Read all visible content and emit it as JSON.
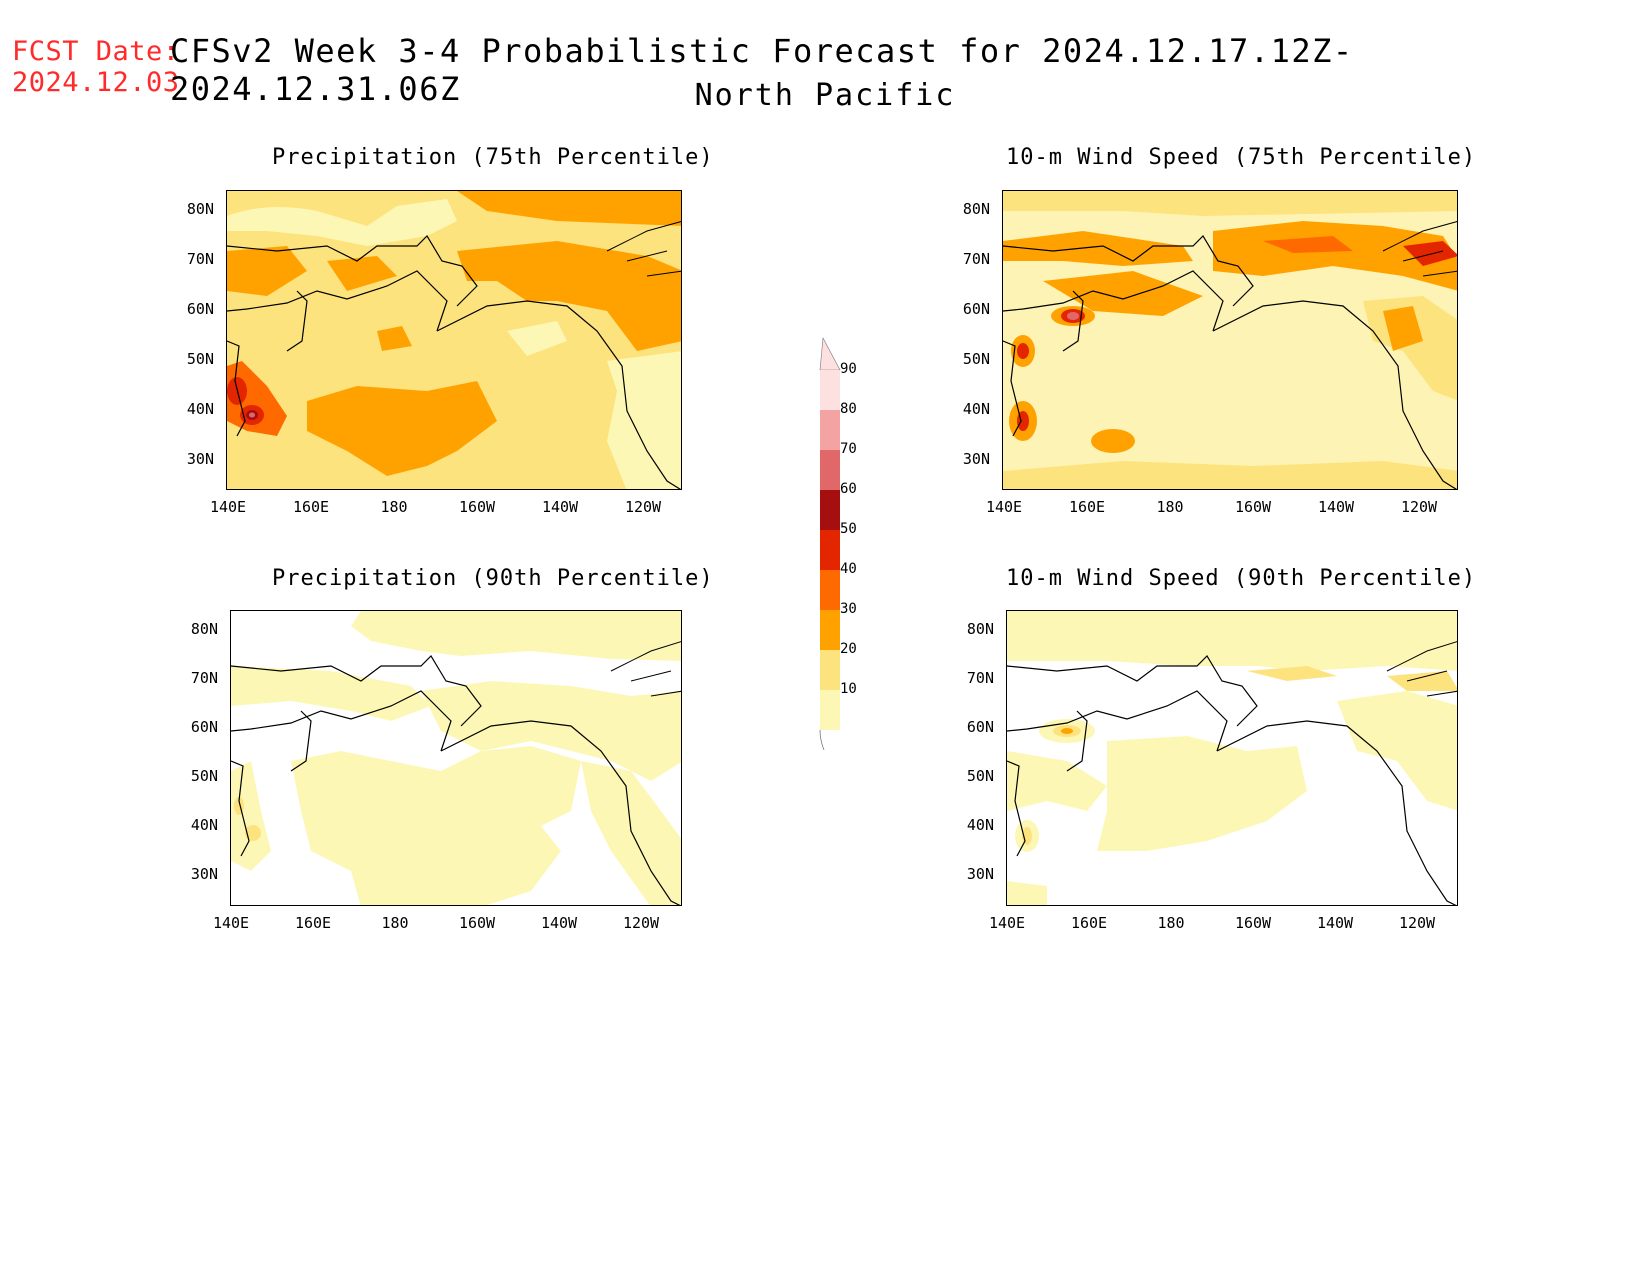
{
  "header": {
    "fcst_label": "FCST Date:",
    "fcst_date": "2024.12.03",
    "title": "CFSv2 Week 3-4 Probabilistic Forecast for 2024.12.17.12Z-2024.12.31.06Z",
    "subtitle": "North Pacific"
  },
  "panels": [
    {
      "title": "Precipitation (75th Percentile)"
    },
    {
      "title": "10-m Wind Speed (75th Percentile)"
    },
    {
      "title": "Precipitation (90th Percentile)"
    },
    {
      "title": "10-m Wind Speed (90th Percentile)"
    }
  ],
  "axes": {
    "lat_ticks": [
      "80N",
      "70N",
      "60N",
      "50N",
      "40N",
      "30N"
    ],
    "lon_ticks": [
      "140E",
      "160E",
      "180",
      "160W",
      "140W",
      "120W"
    ]
  },
  "colorbar": {
    "levels": [
      "90",
      "80",
      "70",
      "60",
      "50",
      "40",
      "30",
      "20",
      "10"
    ],
    "colors": [
      "#fde0e0",
      "#f4a3a3",
      "#e06868",
      "#a50f0f",
      "#e32500",
      "#ff6a00",
      "#ffa200",
      "#fde37e",
      "#fdf7b5"
    ]
  },
  "colors": {
    "title": "#000000",
    "fcst": "#ff2a2a",
    "land_line": "#000000",
    "p75_base": "#fde37e",
    "p90_base": "#ffffff"
  }
}
